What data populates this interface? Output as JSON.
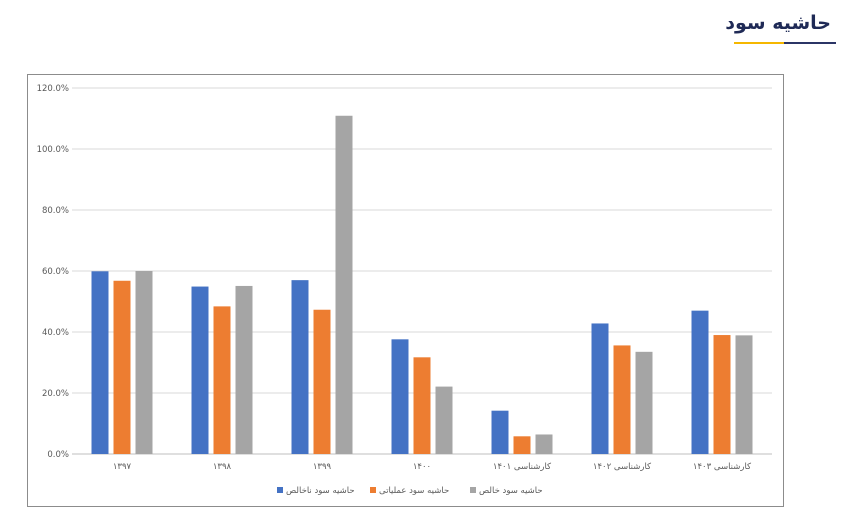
{
  "header": {
    "title": "حاشیه سود"
  },
  "chart_data": {
    "type": "bar",
    "categories": [
      "۱۳۹۷",
      "۱۳۹۸",
      "۱۳۹۹",
      "۱۴۰۰",
      "کارشناسی ۱۴۰۱",
      "کارشناسی ۱۴۰۲",
      "کارشناسی ۱۴۰۳"
    ],
    "series": [
      {
        "name": "حاشیه سود ناخالص",
        "color": "#4472c4",
        "values": [
          59.9,
          54.9,
          57.0,
          37.6,
          14.2,
          42.8,
          47.0
        ]
      },
      {
        "name": "حاشیه سود عملیاتی",
        "color": "#ed7d31",
        "values": [
          56.8,
          48.4,
          47.3,
          31.7,
          5.8,
          35.6,
          39.0
        ]
      },
      {
        "name": "حاشیه سود خالص",
        "color": "#a5a5a5",
        "values": [
          60.0,
          55.1,
          110.9,
          22.1,
          6.4,
          33.5,
          38.9
        ]
      }
    ],
    "yticks": [
      "0.0%",
      "20.0%",
      "40.0%",
      "60.0%",
      "80.0%",
      "100.0%",
      "120.0%"
    ],
    "ylim": [
      0,
      120
    ],
    "grid": true,
    "legend_position": "bottom"
  }
}
